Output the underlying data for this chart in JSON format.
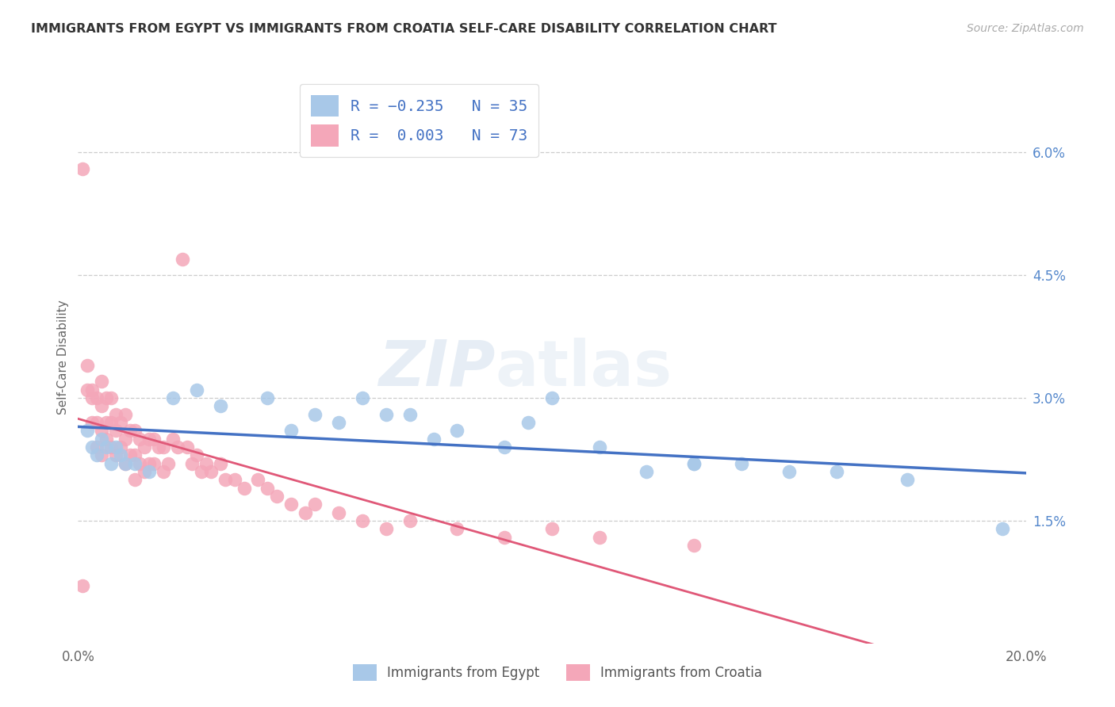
{
  "title": "IMMIGRANTS FROM EGYPT VS IMMIGRANTS FROM CROATIA SELF-CARE DISABILITY CORRELATION CHART",
  "source": "Source: ZipAtlas.com",
  "ylabel": "Self-Care Disability",
  "xlim": [
    0.0,
    0.2
  ],
  "ylim": [
    0.0,
    0.07
  ],
  "xticks": [
    0.0,
    0.05,
    0.1,
    0.15,
    0.2
  ],
  "xtick_labels": [
    "0.0%",
    "",
    "",
    "",
    "20.0%"
  ],
  "ytick_values": [
    0.015,
    0.03,
    0.045,
    0.06
  ],
  "ytick_labels": [
    "1.5%",
    "3.0%",
    "4.5%",
    "6.0%"
  ],
  "egypt_color": "#a8c8e8",
  "egypt_line_color": "#4472c4",
  "croatia_color": "#f4a7b9",
  "croatia_line_color": "#e05878",
  "legend_blue": "Immigrants from Egypt",
  "legend_pink": "Immigrants from Croatia",
  "watermark": "ZIPatlas",
  "egypt_x": [
    0.002,
    0.003,
    0.004,
    0.005,
    0.006,
    0.007,
    0.008,
    0.009,
    0.01,
    0.012,
    0.015,
    0.02,
    0.025,
    0.03,
    0.04,
    0.045,
    0.05,
    0.055,
    0.06,
    0.065,
    0.07,
    0.075,
    0.08,
    0.09,
    0.095,
    0.1,
    0.11,
    0.12,
    0.13,
    0.14,
    0.15,
    0.16,
    0.175,
    0.195,
    0.13
  ],
  "egypt_y": [
    0.026,
    0.024,
    0.023,
    0.025,
    0.024,
    0.022,
    0.024,
    0.023,
    0.022,
    0.022,
    0.021,
    0.03,
    0.031,
    0.029,
    0.03,
    0.026,
    0.028,
    0.027,
    0.03,
    0.028,
    0.028,
    0.025,
    0.026,
    0.024,
    0.027,
    0.03,
    0.024,
    0.021,
    0.022,
    0.022,
    0.021,
    0.021,
    0.02,
    0.014,
    0.022
  ],
  "croatia_x": [
    0.001,
    0.002,
    0.002,
    0.003,
    0.003,
    0.003,
    0.004,
    0.004,
    0.004,
    0.005,
    0.005,
    0.005,
    0.005,
    0.006,
    0.006,
    0.006,
    0.007,
    0.007,
    0.007,
    0.008,
    0.008,
    0.008,
    0.009,
    0.009,
    0.01,
    0.01,
    0.01,
    0.011,
    0.011,
    0.012,
    0.012,
    0.012,
    0.013,
    0.013,
    0.014,
    0.014,
    0.015,
    0.015,
    0.016,
    0.016,
    0.017,
    0.018,
    0.018,
    0.019,
    0.02,
    0.021,
    0.022,
    0.023,
    0.024,
    0.025,
    0.026,
    0.027,
    0.028,
    0.03,
    0.031,
    0.033,
    0.035,
    0.038,
    0.04,
    0.042,
    0.045,
    0.048,
    0.05,
    0.055,
    0.06,
    0.065,
    0.07,
    0.08,
    0.09,
    0.1,
    0.11,
    0.13,
    0.001
  ],
  "croatia_y": [
    0.058,
    0.034,
    0.031,
    0.03,
    0.027,
    0.031,
    0.03,
    0.027,
    0.024,
    0.032,
    0.029,
    0.026,
    0.023,
    0.03,
    0.027,
    0.025,
    0.03,
    0.027,
    0.024,
    0.028,
    0.026,
    0.023,
    0.027,
    0.024,
    0.028,
    0.025,
    0.022,
    0.026,
    0.023,
    0.026,
    0.023,
    0.02,
    0.025,
    0.022,
    0.024,
    0.021,
    0.025,
    0.022,
    0.025,
    0.022,
    0.024,
    0.024,
    0.021,
    0.022,
    0.025,
    0.024,
    0.047,
    0.024,
    0.022,
    0.023,
    0.021,
    0.022,
    0.021,
    0.022,
    0.02,
    0.02,
    0.019,
    0.02,
    0.019,
    0.018,
    0.017,
    0.016,
    0.017,
    0.016,
    0.015,
    0.014,
    0.015,
    0.014,
    0.013,
    0.014,
    0.013,
    0.012,
    0.007
  ]
}
